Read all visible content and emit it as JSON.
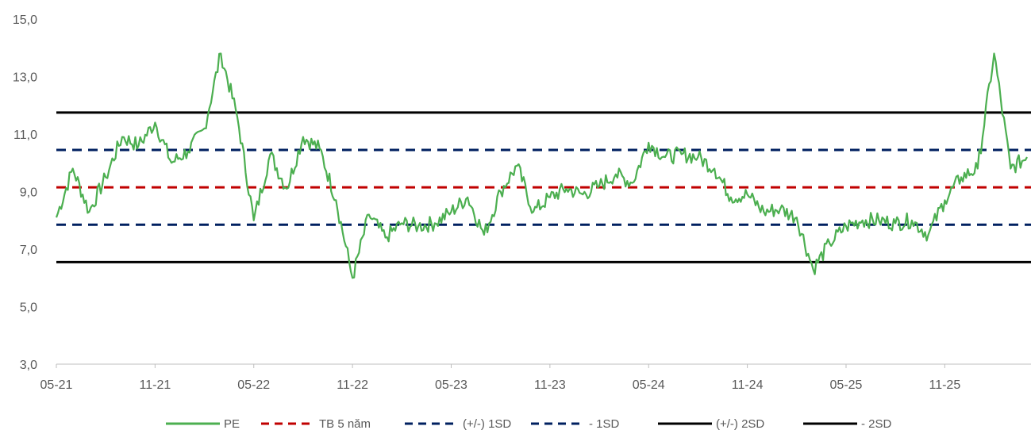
{
  "chart_data": {
    "type": "line",
    "title": "",
    "xlabel": "",
    "ylabel": "",
    "ylim": [
      3,
      15
    ],
    "y_ticks": [
      "3,0",
      "5,0",
      "7,0",
      "9,0",
      "11,0",
      "13,0",
      "15,0"
    ],
    "x_ticks": [
      "05-21",
      "11-21",
      "05-22",
      "11-22",
      "05-23",
      "11-23",
      "05-24",
      "11-24",
      "05-25",
      "11-25"
    ],
    "x_range": [
      "2021-05",
      "2026-04"
    ],
    "grid": false,
    "legend_position": "bottom",
    "series": [
      {
        "name": "PE",
        "color": "#4caf50",
        "style": "solid",
        "points": [
          [
            "2021-05",
            8.1
          ],
          [
            "2021-06",
            9.8
          ],
          [
            "2021-07",
            8.3
          ],
          [
            "2021-08",
            9.5
          ],
          [
            "2021-09",
            10.9
          ],
          [
            "2021-10",
            10.6
          ],
          [
            "2021-11",
            11.4
          ],
          [
            "2021-12",
            10.0
          ],
          [
            "2022-01",
            10.4
          ],
          [
            "2022-02",
            11.2
          ],
          [
            "2022-03",
            13.8
          ],
          [
            "2022-04",
            11.6
          ],
          [
            "2022-05",
            8.0
          ],
          [
            "2022-06",
            10.3
          ],
          [
            "2022-07",
            9.1
          ],
          [
            "2022-08",
            10.9
          ],
          [
            "2022-09",
            10.5
          ],
          [
            "2022-10",
            8.7
          ],
          [
            "2022-11",
            6.0
          ],
          [
            "2022-12",
            8.2
          ],
          [
            "2023-01",
            7.4
          ],
          [
            "2023-02",
            7.9
          ],
          [
            "2023-03",
            7.8
          ],
          [
            "2023-04",
            7.9
          ],
          [
            "2023-05",
            8.3
          ],
          [
            "2023-06",
            8.8
          ],
          [
            "2023-07",
            7.5
          ],
          [
            "2023-08",
            9.0
          ],
          [
            "2023-09",
            9.9
          ],
          [
            "2023-10",
            8.3
          ],
          [
            "2023-11",
            8.8
          ],
          [
            "2023-12",
            9.1
          ],
          [
            "2024-01",
            8.9
          ],
          [
            "2024-02",
            9.2
          ],
          [
            "2024-03",
            9.6
          ],
          [
            "2024-04",
            9.3
          ],
          [
            "2024-05",
            10.7
          ],
          [
            "2024-06",
            10.2
          ],
          [
            "2024-07",
            10.3
          ],
          [
            "2024-08",
            10.2
          ],
          [
            "2024-09",
            9.8
          ],
          [
            "2024-10",
            8.8
          ],
          [
            "2024-11",
            8.9
          ],
          [
            "2024-12",
            8.3
          ],
          [
            "2025-01",
            8.4
          ],
          [
            "2025-02",
            8.1
          ],
          [
            "2025-03",
            6.3
          ],
          [
            "2025-04",
            7.2
          ],
          [
            "2025-05",
            7.8
          ],
          [
            "2025-06",
            8.0
          ],
          [
            "2025-07",
            8.0
          ],
          [
            "2025-08",
            7.9
          ],
          [
            "2025-09",
            8.0
          ],
          [
            "2025-10",
            7.5
          ],
          [
            "2025-11",
            8.7
          ],
          [
            "2025-12",
            9.5
          ],
          [
            "2026-01",
            9.8
          ],
          [
            "2026-02",
            13.8
          ],
          [
            "2026-03",
            9.8
          ],
          [
            "2026-04",
            10.2
          ]
        ]
      },
      {
        "name": "TB 5 năm",
        "color": "#c00000",
        "style": "dashed",
        "value": 9.15
      },
      {
        "name": "(+/-) 1SD",
        "color": "#002060",
        "style": "dashed",
        "value": 10.45
      },
      {
        "name": "- 1SD",
        "color": "#002060",
        "style": "dashed",
        "value": 7.85
      },
      {
        "name": "(+/-) 2SD",
        "color": "#000000",
        "style": "solid",
        "value": 11.75
      },
      {
        "name": "- 2SD",
        "color": "#000000",
        "style": "solid",
        "value": 6.55
      }
    ]
  }
}
